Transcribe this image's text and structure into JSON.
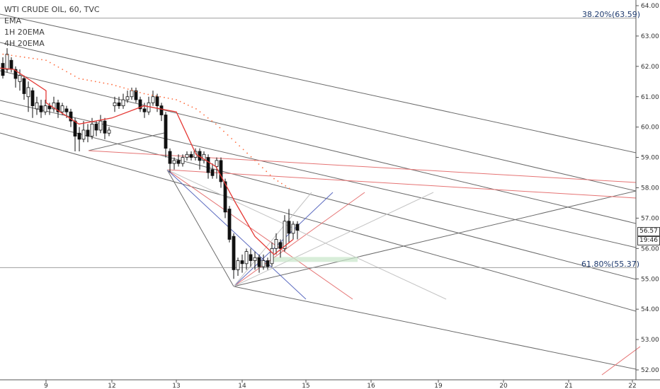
{
  "legend": {
    "symbol": "WTI CRUDE OIL, 60, TVC",
    "ind1": "EMA",
    "ind2": "1H 20EMA",
    "ind3": "4H 20EMA"
  },
  "fib": {
    "upper_label": "38.20%(63.59)",
    "upper_value": 63.59,
    "lower_label": "61.80%(55.37)",
    "lower_value": 55.37
  },
  "price_tags": {
    "last_price": "56.57",
    "countdown": "19:46"
  },
  "chart_data": {
    "type": "line",
    "title": "WTI CRUDE OIL, 60, TVC",
    "ylim": [
      51.8,
      64.2
    ],
    "y_ticks": [
      52.0,
      53.0,
      54.0,
      55.0,
      56.0,
      57.0,
      58.0,
      59.0,
      60.0,
      61.0,
      62.0,
      63.0,
      64.0
    ],
    "y_tick_labels": [
      "52.00",
      "53.00",
      "54.00",
      "55.00",
      "56.00",
      "57.00",
      "58.00",
      "59.00",
      "60.00",
      "61.00",
      "62.00",
      "63.00",
      "64.00"
    ],
    "x_tick_labels": [
      "9",
      "12",
      "13",
      "14",
      "15",
      "16",
      "19",
      "20",
      "21",
      "22"
    ],
    "last_price": 56.57,
    "series": [
      {
        "name": "EMA",
        "color": "#e53935",
        "x": [
          "8",
          "8.5",
          "9",
          "9.5",
          "11.5",
          "12",
          "12.5",
          "13",
          "13.3",
          "13.6",
          "13.9",
          "14.2",
          "14.5",
          "14.8"
        ],
        "values": [
          62.0,
          61.9,
          61.2,
          60.8,
          60.1,
          60.3,
          60.7,
          60.5,
          59.1,
          58.7,
          57.5,
          56.4,
          55.8,
          56.3
        ]
      },
      {
        "name": "4H 20EMA",
        "color": "#ff6e40",
        "x": [
          "8",
          "9",
          "11.5",
          "12",
          "12.5",
          "13",
          "13.3",
          "13.6",
          "13.9",
          "14.2",
          "14.5",
          "14.8"
        ],
        "values": [
          62.5,
          62.2,
          61.6,
          61.4,
          61.1,
          60.9,
          60.6,
          60.1,
          59.5,
          58.9,
          58.3,
          57.9
        ]
      }
    ]
  }
}
